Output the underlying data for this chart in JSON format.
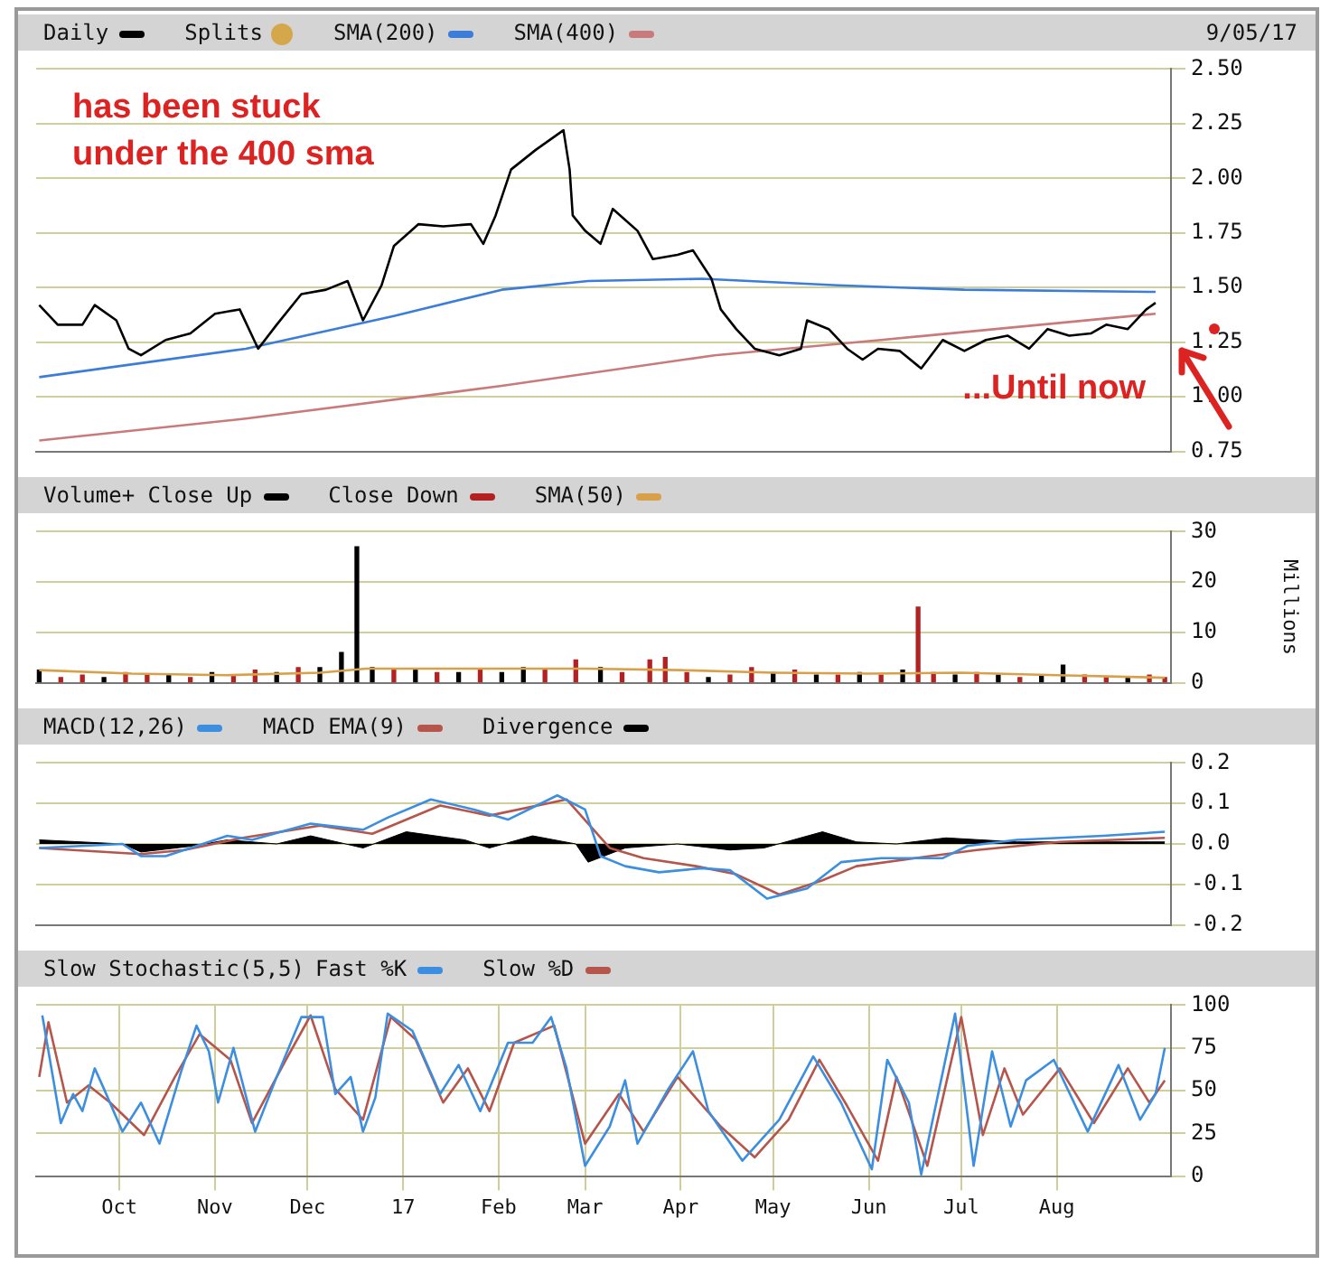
{
  "chart_data": [
    {
      "type": "line",
      "xlim": [
        "2016-09-04",
        "2017-09-07"
      ],
      "ylim": [
        0.75,
        2.5
      ],
      "xticks": [
        {
          "value": "2016-10-01",
          "label": null
        },
        {
          "value": "2016-11-01",
          "label": null
        },
        {
          "value": "2016-12-01",
          "label": null
        },
        {
          "value": "2017-01-01",
          "label": null
        },
        {
          "value": "2017-02-01",
          "label": null
        },
        {
          "value": "2017-03-01",
          "label": null
        },
        {
          "value": "2017-04-01",
          "label": null
        },
        {
          "value": "2017-05-01",
          "label": null
        },
        {
          "value": "2017-06-01",
          "label": null
        },
        {
          "value": "2017-07-01",
          "label": null
        },
        {
          "value": "2017-08-01",
          "label": null
        }
      ],
      "yticks": [
        {
          "value": 2.5,
          "label": "2.50"
        },
        2.25,
        {
          "value": 2,
          "label": "2.00"
        },
        1.75,
        {
          "value": 1.5,
          "label": "1.50"
        },
        1.25,
        {
          "value": 1,
          "label": "1.00"
        },
        0.75
      ],
      "tick_labels": "y",
      "grid": true,
      "legend": "top left",
      "marker": "none",
      "annotations": [
        "Splits",
        "9/05/17",
        "has been stuck\nunder the 400 sma",
        "...Until now"
      ],
      "series": [
        {
          "name": "Daily",
          "color": "#000000",
          "x": [
            "2016-09-05",
            "2016-09-11",
            "2016-09-19",
            "2016-09-23",
            "2016-09-30",
            "2016-10-04",
            "2016-10-08",
            "2016-10-16",
            "2016-10-24",
            "2016-11-01",
            "2016-11-09",
            "2016-11-15",
            "2016-11-21",
            "2016-11-29",
            "2016-12-07",
            "2016-12-14",
            "2016-12-19",
            "2016-12-25",
            "2016-12-29",
            "2017-01-06",
            "2017-01-14",
            "2017-01-23",
            "2017-01-27",
            "2017-01-31",
            "2017-02-05",
            "2017-02-13",
            "2017-02-19",
            "2017-02-22",
            "2017-02-24",
            "2017-02-25",
            "2017-03-01",
            "2017-03-06",
            "2017-03-10",
            "2017-03-18",
            "2017-03-23",
            "2017-03-31",
            "2017-04-05",
            "2017-04-11",
            "2017-04-14",
            "2017-04-19",
            "2017-04-25",
            "2017-05-03",
            "2017-05-10",
            "2017-05-12",
            "2017-05-19",
            "2017-05-25",
            "2017-05-30",
            "2017-06-04",
            "2017-06-11",
            "2017-06-18",
            "2017-06-25",
            "2017-07-02",
            "2017-07-09",
            "2017-07-16",
            "2017-07-23",
            "2017-07-29",
            "2017-08-05",
            "2017-08-12",
            "2017-08-17",
            "2017-08-24",
            "2017-08-30",
            "2017-09-02"
          ],
          "values": [
            1.42,
            1.33,
            1.33,
            1.42,
            1.35,
            1.22,
            1.19,
            1.26,
            1.29,
            1.38,
            1.4,
            1.22,
            1.33,
            1.47,
            1.49,
            1.53,
            1.35,
            1.51,
            1.69,
            1.79,
            1.78,
            1.79,
            1.7,
            1.83,
            2.04,
            2.13,
            2.19,
            2.22,
            2.04,
            1.83,
            1.76,
            1.7,
            1.86,
            1.76,
            1.63,
            1.65,
            1.67,
            1.54,
            1.4,
            1.31,
            1.22,
            1.19,
            1.22,
            1.35,
            1.31,
            1.22,
            1.17,
            1.22,
            1.21,
            1.13,
            1.26,
            1.21,
            1.26,
            1.28,
            1.22,
            1.31,
            1.28,
            1.29,
            1.33,
            1.31,
            1.4,
            1.43
          ]
        },
        {
          "name": "SMA(200)",
          "color": "#3b7dd8",
          "x": [
            "2016-09-05",
            "2016-11-11",
            "2016-12-29",
            "2017-02-02",
            "2017-03-02",
            "2017-04-08",
            "2017-05-22",
            "2017-07-02",
            "2017-09-02"
          ],
          "values": [
            1.09,
            1.22,
            1.37,
            1.49,
            1.53,
            1.54,
            1.51,
            1.49,
            1.48
          ]
        },
        {
          "name": "SMA(400)",
          "color": "#c97a7a",
          "x": [
            "2016-09-05",
            "2016-11-11",
            "2017-02-02",
            "2017-04-12",
            "2017-06-05",
            "2017-09-02"
          ],
          "values": [
            0.8,
            0.9,
            1.05,
            1.19,
            1.26,
            1.38
          ]
        }
      ]
    },
    {
      "type": "bar",
      "xlim": [
        "2016-09-04",
        "2017-09-07"
      ],
      "ylim": [
        0,
        30
      ],
      "yticks": [
        0,
        10,
        20,
        30
      ],
      "ylabel": "Millions",
      "xticks": [
        {
          "value": "2016-10-01",
          "label": null
        },
        {
          "value": "2016-11-01",
          "label": null
        },
        {
          "value": "2016-12-01",
          "label": null
        },
        {
          "value": "2017-01-01",
          "label": null
        },
        {
          "value": "2017-02-01",
          "label": null
        },
        {
          "value": "2017-03-01",
          "label": null
        },
        {
          "value": "2017-04-01",
          "label": null
        },
        {
          "value": "2017-05-01",
          "label": null
        },
        {
          "value": "2017-06-01",
          "label": null
        },
        {
          "value": "2017-07-01",
          "label": null
        },
        {
          "value": "2017-08-01",
          "label": null
        }
      ],
      "tick_labels": "y",
      "grid": true,
      "legend": "top left",
      "series": [
        {
          "name": "Volume+ Close Up",
          "color": "#000000",
          "x": [
            "2016-09-05",
            "2016-09-26",
            "2016-10-17",
            "2016-10-31",
            "2016-11-21",
            "2016-12-05",
            "2016-12-12",
            "2016-12-17",
            "2016-12-22",
            "2017-01-05",
            "2017-01-19",
            "2017-02-02",
            "2017-02-09",
            "2017-03-06",
            "2017-04-10",
            "2017-05-01",
            "2017-05-15",
            "2017-05-29",
            "2017-06-12",
            "2017-06-29",
            "2017-07-13",
            "2017-07-27",
            "2017-08-03",
            "2017-08-24"
          ],
          "values": [
            2.5,
            1,
            1.5,
            2,
            2,
            3,
            6,
            27,
            3,
            2.5,
            2,
            2,
            3,
            3,
            1,
            2,
            1.5,
            2,
            2.5,
            1.5,
            1.5,
            1.5,
            3.5,
            1
          ]
        },
        {
          "name": "Close Down",
          "color": "#b22222",
          "x": [
            "2016-09-12",
            "2016-09-19",
            "2016-10-03",
            "2016-10-10",
            "2016-10-24",
            "2016-11-07",
            "2016-11-14",
            "2016-11-28",
            "2016-12-29",
            "2017-01-12",
            "2017-01-26",
            "2017-02-16",
            "2017-02-26",
            "2017-03-13",
            "2017-03-22",
            "2017-03-27",
            "2017-04-03",
            "2017-04-17",
            "2017-04-24",
            "2017-05-08",
            "2017-05-22",
            "2017-06-05",
            "2017-06-17",
            "2017-06-22",
            "2017-07-06",
            "2017-07-20",
            "2017-08-10",
            "2017-08-17",
            "2017-08-31",
            "2017-09-05"
          ],
          "values": [
            1,
            1.5,
            2,
            1.5,
            1,
            1.5,
            2.5,
            3,
            2.5,
            2,
            2.5,
            2.5,
            4.5,
            2,
            4.5,
            5,
            2,
            1.5,
            3,
            2.5,
            1.5,
            1.5,
            15,
            2,
            2,
            1,
            1.5,
            1,
            1.5,
            1
          ]
        },
        {
          "name": "SMA(50)",
          "type": "line",
          "color": "#d9a04a",
          "x": [
            "2016-09-05",
            "2016-10-05",
            "2016-11-05",
            "2016-12-05",
            "2016-12-20",
            "2017-02-01",
            "2017-03-01",
            "2017-04-01",
            "2017-05-01",
            "2017-06-01",
            "2017-07-01",
            "2017-08-01",
            "2017-09-05"
          ],
          "values": [
            2.5,
            1.8,
            1.5,
            2,
            2.8,
            2.8,
            2.8,
            2.5,
            2,
            1.8,
            2,
            1.5,
            1
          ]
        }
      ]
    },
    {
      "type": "line",
      "xlim": [
        "2016-09-04",
        "2017-09-07"
      ],
      "ylim": [
        -0.2,
        0.2
      ],
      "yticks": [
        0.2,
        0.1,
        {
          "value": 0,
          "label": "0.0"
        },
        -0.1,
        -0.2
      ],
      "xticks": [
        {
          "value": "2016-10-01",
          "label": null
        },
        {
          "value": "2016-11-01",
          "label": null
        },
        {
          "value": "2016-12-01",
          "label": null
        },
        {
          "value": "2017-01-01",
          "label": null
        },
        {
          "value": "2017-02-01",
          "label": null
        },
        {
          "value": "2017-03-01",
          "label": null
        },
        {
          "value": "2017-04-01",
          "label": null
        },
        {
          "value": "2017-05-01",
          "label": null
        },
        {
          "value": "2017-06-01",
          "label": null
        },
        {
          "value": "2017-07-01",
          "label": null
        },
        {
          "value": "2017-08-01",
          "label": null
        }
      ],
      "tick_labels": "y",
      "grid": true,
      "legend": "top left",
      "marker": "none",
      "series": [
        {
          "name": "Divergence",
          "type": "area",
          "color": "#000000",
          "x": [
            "2016-09-05",
            "2016-10-02",
            "2016-10-08",
            "2016-10-25",
            "2016-11-05",
            "2016-11-21",
            "2016-12-02",
            "2016-12-19",
            "2017-01-02",
            "2017-01-21",
            "2017-01-29",
            "2017-02-12",
            "2017-02-26",
            "2017-03-02",
            "2017-03-14",
            "2017-03-31",
            "2017-04-17",
            "2017-04-28",
            "2017-05-17",
            "2017-05-28",
            "2017-06-10",
            "2017-06-26",
            "2017-07-19",
            "2017-09-05"
          ],
          "values": [
            0.01,
            0,
            -0.02,
            -0.005,
            0.01,
            0,
            0.02,
            -0.01,
            0.03,
            0.01,
            -0.01,
            0.02,
            0,
            -0.045,
            -0.01,
            0,
            -0.015,
            -0.01,
            0.03,
            0.005,
            0,
            0.015,
            0.005,
            0.005
          ]
        },
        {
          "name": "MACD(12,26)",
          "color": "#3b8ee0",
          "x": [
            "2016-09-05",
            "2016-10-02",
            "2016-10-08",
            "2016-10-16",
            "2016-11-05",
            "2016-11-13",
            "2016-12-02",
            "2016-12-19",
            "2016-12-27",
            "2017-01-10",
            "2017-01-24",
            "2017-02-04",
            "2017-02-20",
            "2017-03-01",
            "2017-03-06",
            "2017-03-14",
            "2017-03-25",
            "2017-04-08",
            "2017-04-17",
            "2017-04-29",
            "2017-05-12",
            "2017-05-23",
            "2017-06-05",
            "2017-06-25",
            "2017-07-03",
            "2017-07-19",
            "2017-08-16",
            "2017-09-05"
          ],
          "values": [
            -0.01,
            0,
            -0.03,
            -0.03,
            0.02,
            0.01,
            0.05,
            0.035,
            0.065,
            0.11,
            0.085,
            0.06,
            0.12,
            0.085,
            -0.03,
            -0.055,
            -0.07,
            -0.06,
            -0.065,
            -0.135,
            -0.11,
            -0.045,
            -0.035,
            -0.035,
            -0.005,
            0.01,
            0.02,
            0.03
          ]
        },
        {
          "name": "MACD EMA(9)",
          "color": "#b5554b",
          "x": [
            "2016-09-05",
            "2016-10-08",
            "2016-10-22",
            "2016-11-10",
            "2016-12-05",
            "2016-12-22",
            "2017-01-13",
            "2017-01-29",
            "2017-02-23",
            "2017-03-09",
            "2017-03-20",
            "2017-04-06",
            "2017-04-19",
            "2017-05-03",
            "2017-05-17",
            "2017-05-28",
            "2017-06-16",
            "2017-07-06",
            "2017-08-02",
            "2017-09-05"
          ],
          "values": [
            -0.01,
            -0.025,
            -0.015,
            0.015,
            0.045,
            0.025,
            0.095,
            0.07,
            0.11,
            -0.01,
            -0.035,
            -0.055,
            -0.075,
            -0.125,
            -0.09,
            -0.055,
            -0.035,
            -0.015,
            0.005,
            0.015
          ]
        }
      ]
    },
    {
      "type": "line",
      "title": "Slow Stochastic(5,5)",
      "xlim": [
        "2016-09-04",
        "2017-09-07"
      ],
      "ylim": [
        0,
        100
      ],
      "yticks": [
        0,
        25,
        50,
        75,
        100
      ],
      "xticks": [
        {
          "value": "2016-10-01",
          "label": "Oct"
        },
        {
          "value": "2016-11-01",
          "label": "Nov"
        },
        {
          "value": "2016-12-01",
          "label": "Dec"
        },
        {
          "value": "2017-01-01",
          "label": "17"
        },
        {
          "value": "2017-02-01",
          "label": "Feb"
        },
        {
          "value": "2017-03-01",
          "label": "Mar"
        },
        {
          "value": "2017-04-01",
          "label": "Apr"
        },
        {
          "value": "2017-05-01",
          "label": "May"
        },
        {
          "value": "2017-06-01",
          "label": "Jun"
        },
        {
          "value": "2017-07-01",
          "label": "Jul"
        },
        {
          "value": "2017-08-01",
          "label": "Aug"
        }
      ],
      "grid": true,
      "legend": "top left",
      "marker": "none",
      "series": [
        {
          "name": "Fast %K",
          "color": "#3b8ee0",
          "x": [
            "2016-09-06",
            "2016-09-12",
            "2016-09-16",
            "2016-09-19",
            "2016-09-23",
            "2016-09-26",
            "2016-10-02",
            "2016-10-08",
            "2016-10-14",
            "2016-10-21",
            "2016-10-26",
            "2016-10-30",
            "2016-11-02",
            "2016-11-07",
            "2016-11-14",
            "2016-11-21",
            "2016-11-29",
            "2016-12-06",
            "2016-12-10",
            "2016-12-15",
            "2016-12-19",
            "2016-12-23",
            "2016-12-27",
            "2017-01-04",
            "2017-01-13",
            "2017-01-19",
            "2017-01-26",
            "2017-02-04",
            "2017-02-12",
            "2017-02-18",
            "2017-02-23",
            "2017-03-01",
            "2017-03-09",
            "2017-03-14",
            "2017-03-18",
            "2017-03-28",
            "2017-04-05",
            "2017-04-10",
            "2017-04-21",
            "2017-05-03",
            "2017-05-14",
            "2017-05-23",
            "2017-06-02",
            "2017-06-07",
            "2017-06-14",
            "2017-06-18",
            "2017-06-29",
            "2017-07-05",
            "2017-07-11",
            "2017-07-17",
            "2017-07-22",
            "2017-07-31",
            "2017-08-11",
            "2017-08-21",
            "2017-08-28",
            "2017-09-02",
            "2017-09-05"
          ],
          "values": [
            94,
            31,
            48,
            38,
            63,
            51,
            26,
            43,
            19,
            61,
            88,
            73,
            43,
            75,
            26,
            58,
            93,
            93,
            48,
            58,
            26,
            46,
            95,
            85,
            48,
            65,
            38,
            78,
            78,
            93,
            63,
            6,
            29,
            56,
            19,
            51,
            73,
            38,
            9,
            33,
            70,
            43,
            4,
            68,
            43,
            1,
            95,
            6,
            73,
            29,
            56,
            68,
            26,
            65,
            33,
            48,
            75
          ]
        },
        {
          "name": "Slow %D",
          "color": "#b5554b",
          "x": [
            "2016-09-05",
            "2016-09-08",
            "2016-09-14",
            "2016-09-21",
            "2016-09-28",
            "2016-10-09",
            "2016-10-19",
            "2016-10-27",
            "2016-11-06",
            "2016-11-13",
            "2016-11-24",
            "2016-12-02",
            "2016-12-10",
            "2016-12-19",
            "2016-12-28",
            "2017-01-05",
            "2017-01-14",
            "2017-01-22",
            "2017-01-29",
            "2017-02-06",
            "2017-02-19",
            "2017-03-01",
            "2017-03-12",
            "2017-03-20",
            "2017-03-31",
            "2017-04-14",
            "2017-04-25",
            "2017-05-06",
            "2017-05-16",
            "2017-05-25",
            "2017-06-04",
            "2017-06-10",
            "2017-06-20",
            "2017-07-01",
            "2017-07-08",
            "2017-07-15",
            "2017-07-21",
            "2017-08-02",
            "2017-08-13",
            "2017-08-24",
            "2017-08-31",
            "2017-09-05"
          ],
          "values": [
            58,
            90,
            43,
            53,
            43,
            24,
            58,
            83,
            68,
            31,
            68,
            94,
            51,
            33,
            93,
            80,
            43,
            63,
            38,
            78,
            88,
            19,
            48,
            26,
            58,
            29,
            11,
            33,
            68,
            41,
            9,
            58,
            6,
            93,
            24,
            63,
            36,
            63,
            31,
            63,
            43,
            56
          ]
        }
      ]
    }
  ]
}
